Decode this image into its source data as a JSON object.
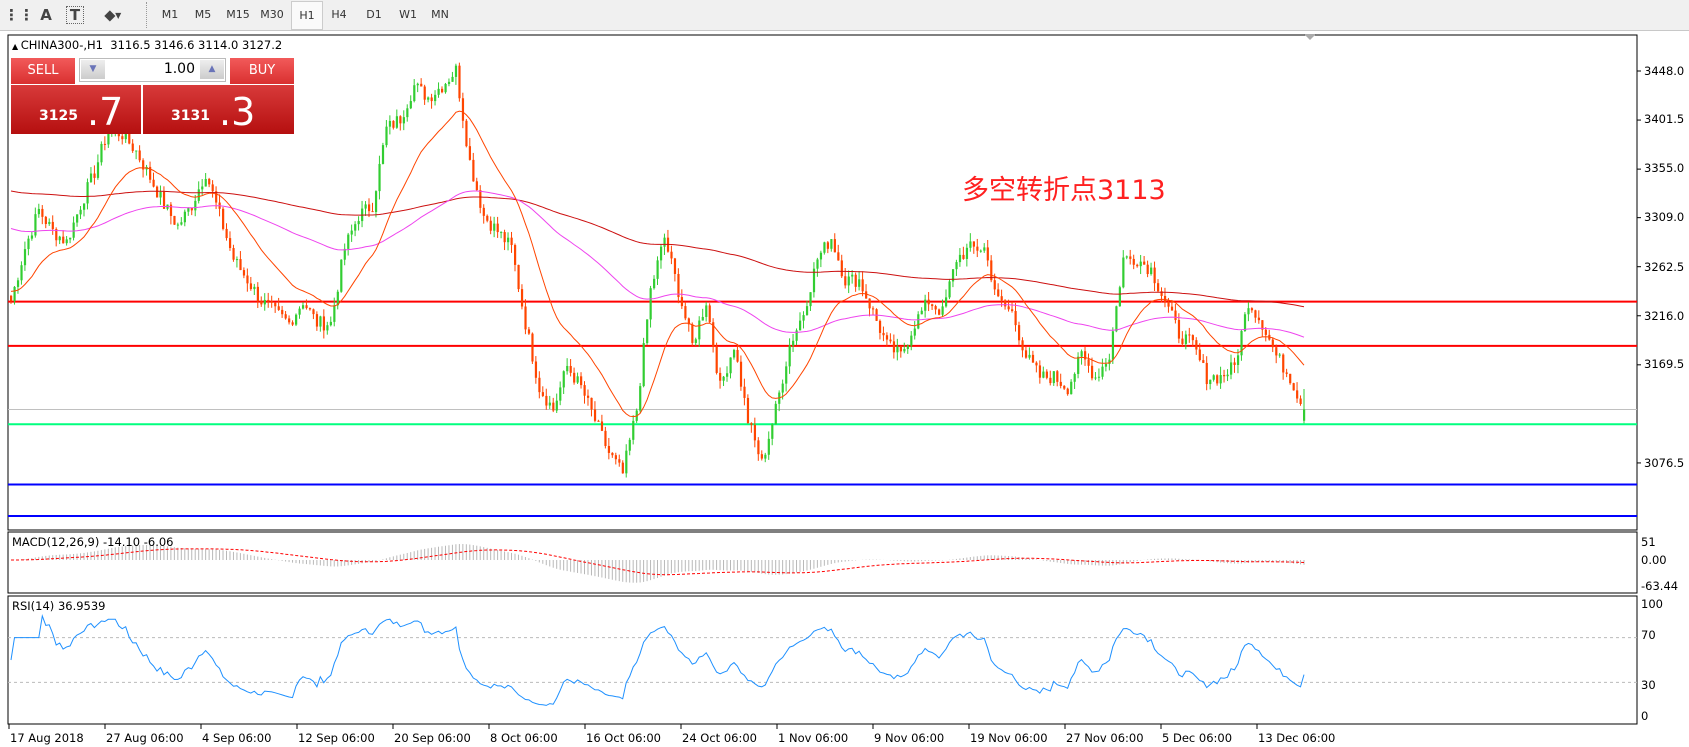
{
  "toolbar": {
    "icons": [
      "crosshair-grid-icon",
      "text-icon",
      "text-label-icon",
      "arrows-dropdown-icon"
    ],
    "icon_glyphs": [
      "⋮⋮",
      "A",
      "T",
      "⬥"
    ],
    "timeframes": [
      "M1",
      "M5",
      "M15",
      "M30",
      "H1",
      "H4",
      "D1",
      "W1",
      "MN"
    ],
    "active_timeframe": "H1"
  },
  "chart": {
    "symbol_line": "CHINA300-,H1  3116.5 3146.6 3114.0 3127.2",
    "annotation": "多空转折点3113",
    "annotation_color": "#ff2020"
  },
  "trade_panel": {
    "sell_label": "SELL",
    "buy_label": "BUY",
    "lot": "1.00",
    "sell_price_main": "3125",
    "sell_price_frac": ".7",
    "buy_price_main": "3131",
    "buy_price_frac": ".3"
  },
  "price_axis": {
    "ticks": [
      "3448.0",
      "3401.5",
      "3355.0",
      "3309.0",
      "3262.5",
      "3216.0",
      "3169.5",
      "3076.5"
    ],
    "levels": [
      {
        "value": "3229.4",
        "color": "#ff0000"
      },
      {
        "value": "3187.5",
        "color": "#ff0000"
      },
      {
        "value": "3127.2",
        "color": "#000000"
      },
      {
        "value": "3113.2",
        "color": "#00ff7f"
      },
      {
        "value": "3056.1",
        "color": "#0000ff"
      },
      {
        "value": "3026.2",
        "color": "#0000ff"
      }
    ]
  },
  "macd": {
    "label": "MACD(12,26,9) -14.10 -6.06",
    "ticks": [
      "51",
      "0.00",
      "-63.44"
    ]
  },
  "rsi": {
    "label": "RSI(14) 36.9539",
    "ticks": [
      "100",
      "70",
      "30",
      "0"
    ]
  },
  "time_axis": [
    "17 Aug 2018",
    "27 Aug 06:00",
    "4 Sep 06:00",
    "12 Sep 06:00",
    "20 Sep 06:00",
    "8 Oct 06:00",
    "16 Oct 06:00",
    "24 Oct 06:00",
    "1 Nov 06:00",
    "9 Nov 06:00",
    "19 Nov 06:00",
    "27 Nov 06:00",
    "5 Dec 06:00",
    "13 Dec 06:00"
  ],
  "chart_data": {
    "type": "candlestick",
    "colors": {
      "up": "#32cd32",
      "down": "#ff4500",
      "ma_fast": "#ff4500",
      "ma_mid": "#ee44ee",
      "ma_slow": "#cc1010",
      "rsi": "#1e90ff"
    },
    "close_keypoints": [
      3230,
      3280,
      3316,
      3296,
      3286,
      3321,
      3352,
      3393,
      3388,
      3372,
      3347,
      3321,
      3301,
      3321,
      3352,
      3311,
      3270,
      3250,
      3230,
      3219,
      3209,
      3230,
      3209,
      3209,
      3280,
      3311,
      3321,
      3393,
      3403,
      3434,
      3423,
      3434,
      3449,
      3362,
      3311,
      3296,
      3280,
      3209,
      3148,
      3127,
      3168,
      3148,
      3117,
      3086,
      3066,
      3127,
      3240,
      3290,
      3240,
      3188,
      3230,
      3148,
      3188,
      3117,
      3076,
      3127,
      3188,
      3219,
      3270,
      3290,
      3250,
      3250,
      3219,
      3188,
      3178,
      3209,
      3230,
      3219,
      3270,
      3280,
      3280,
      3230,
      3219,
      3178,
      3158,
      3158,
      3148,
      3178,
      3158,
      3178,
      3270,
      3270,
      3260,
      3230,
      3199,
      3188,
      3158,
      3158,
      3168,
      3230,
      3209,
      3178,
      3158,
      3127
    ],
    "last_ohlc": {
      "open": 3116.5,
      "high": 3146.6,
      "low": 3114.0,
      "close": 3127.2
    },
    "price_range": [
      3010,
      3480
    ]
  }
}
